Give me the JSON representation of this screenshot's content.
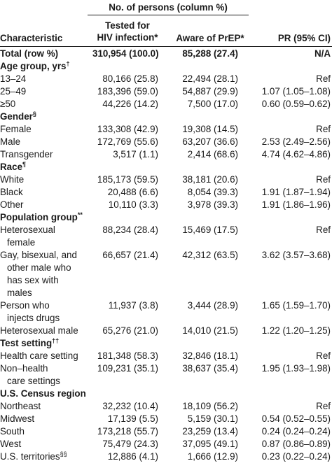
{
  "header": {
    "group_label": "No. of persons (column %)",
    "col_characteristic": "Characteristic",
    "col_tested_line1": "Tested for",
    "col_tested_line2": "HIV infection*",
    "col_aware": "Aware of PrEP*",
    "col_pr": "PR (95% CI)"
  },
  "total": {
    "label": "Total (row %)",
    "tested": "310,954 (100.0)",
    "aware": "85,288 (27.4)",
    "pr": "N/A"
  },
  "sections": [
    {
      "title": "Age group, yrs",
      "mark": "†",
      "rows": [
        {
          "lines": [
            "13–24"
          ],
          "tested": "80,166 (25.8)",
          "aware": "22,494 (28.1)",
          "pr": "Ref"
        },
        {
          "lines": [
            "25–49"
          ],
          "tested": "183,396 (59.0)",
          "aware": "54,887 (29.9)",
          "pr": "1.07 (1.05–1.08)"
        },
        {
          "lines": [
            "≥50"
          ],
          "tested": "44,226 (14.2)",
          "aware": "7,500 (17.0)",
          "pr": "0.60 (0.59–0.62)"
        }
      ]
    },
    {
      "title": "Gender",
      "mark": "§",
      "rows": [
        {
          "lines": [
            "Female"
          ],
          "tested": "133,308 (42.9)",
          "aware": "19,308 (14.5)",
          "pr": "Ref"
        },
        {
          "lines": [
            "Male"
          ],
          "tested": "172,769 (55.6)",
          "aware": "63,207 (36.6)",
          "pr": "2.53 (2.49–2.56)"
        },
        {
          "lines": [
            "Transgender"
          ],
          "tested": "3,517 (1.1)",
          "aware": "2,414 (68.6)",
          "pr": "4.74 (4.62–4.86)"
        }
      ]
    },
    {
      "title": "Race",
      "mark": "¶",
      "rows": [
        {
          "lines": [
            "White"
          ],
          "tested": "185,173 (59.5)",
          "aware": "38,181 (20.6)",
          "pr": "Ref"
        },
        {
          "lines": [
            "Black"
          ],
          "tested": "20,488 (6.6)",
          "aware": "8,054 (39.3)",
          "pr": "1.91 (1.87–1.94)"
        },
        {
          "lines": [
            "Other"
          ],
          "tested": "10,110 (3.3)",
          "aware": "3,978 (39.3)",
          "pr": "1.91 (1.86–1.96)"
        }
      ]
    },
    {
      "title": "Population group",
      "mark": "**",
      "rows": [
        {
          "lines": [
            "Heterosexual",
            "female"
          ],
          "tested": "88,234 (28.4)",
          "aware": "15,469 (17.5)",
          "pr": "Ref"
        },
        {
          "lines": [
            "Gay, bisexual, and",
            "other male who",
            "has sex with",
            "males"
          ],
          "tested": "66,657 (21.4)",
          "aware": "42,312 (63.5)",
          "pr": "3.62 (3.57–3.68)"
        },
        {
          "lines": [
            "Person who",
            "injects drugs"
          ],
          "tested": "11,937 (3.8)",
          "aware": "3,444 (28.9)",
          "pr": "1.65 (1.59–1.70)"
        },
        {
          "lines": [
            "Heterosexual male"
          ],
          "tested": "65,276 (21.0)",
          "aware": "14,010 (21.5)",
          "pr": "1.22 (1.20–1.25)"
        }
      ]
    },
    {
      "title": "Test setting",
      "mark": "††",
      "rows": [
        {
          "lines": [
            "Health care setting"
          ],
          "tested": "181,348 (58.3)",
          "aware": "32,846 (18.1)",
          "pr": "Ref"
        },
        {
          "lines": [
            "Non–health",
            "care settings"
          ],
          "tested": "109,231 (35.1)",
          "aware": "38,637 (35.4)",
          "pr": "1.95 (1.93–1.98)"
        }
      ]
    },
    {
      "title": "U.S. Census region",
      "mark": "",
      "rows": [
        {
          "lines": [
            "Northeast"
          ],
          "tested": "32,232 (10.4)",
          "aware": "18,109 (56.2)",
          "pr": "Ref"
        },
        {
          "lines": [
            "Midwest"
          ],
          "tested": "17,139 (5.5)",
          "aware": "5,159 (30.1)",
          "pr": "0.54 (0.52–0.55)"
        },
        {
          "lines": [
            "South"
          ],
          "tested": "173,218 (55.7)",
          "aware": "23,259 (13.4)",
          "pr": "0.24 (0.24–0.24)"
        },
        {
          "lines": [
            "West"
          ],
          "tested": "75,479 (24.3)",
          "aware": "37,095 (49.1)",
          "pr": "0.87 (0.86–0.89)"
        },
        {
          "lines": [
            "U.S. territories"
          ],
          "mark": "§§",
          "tested": "12,886 (4.1)",
          "aware": "1,666 (12.9)",
          "pr": "0.23 (0.22–0.24)"
        }
      ]
    }
  ]
}
